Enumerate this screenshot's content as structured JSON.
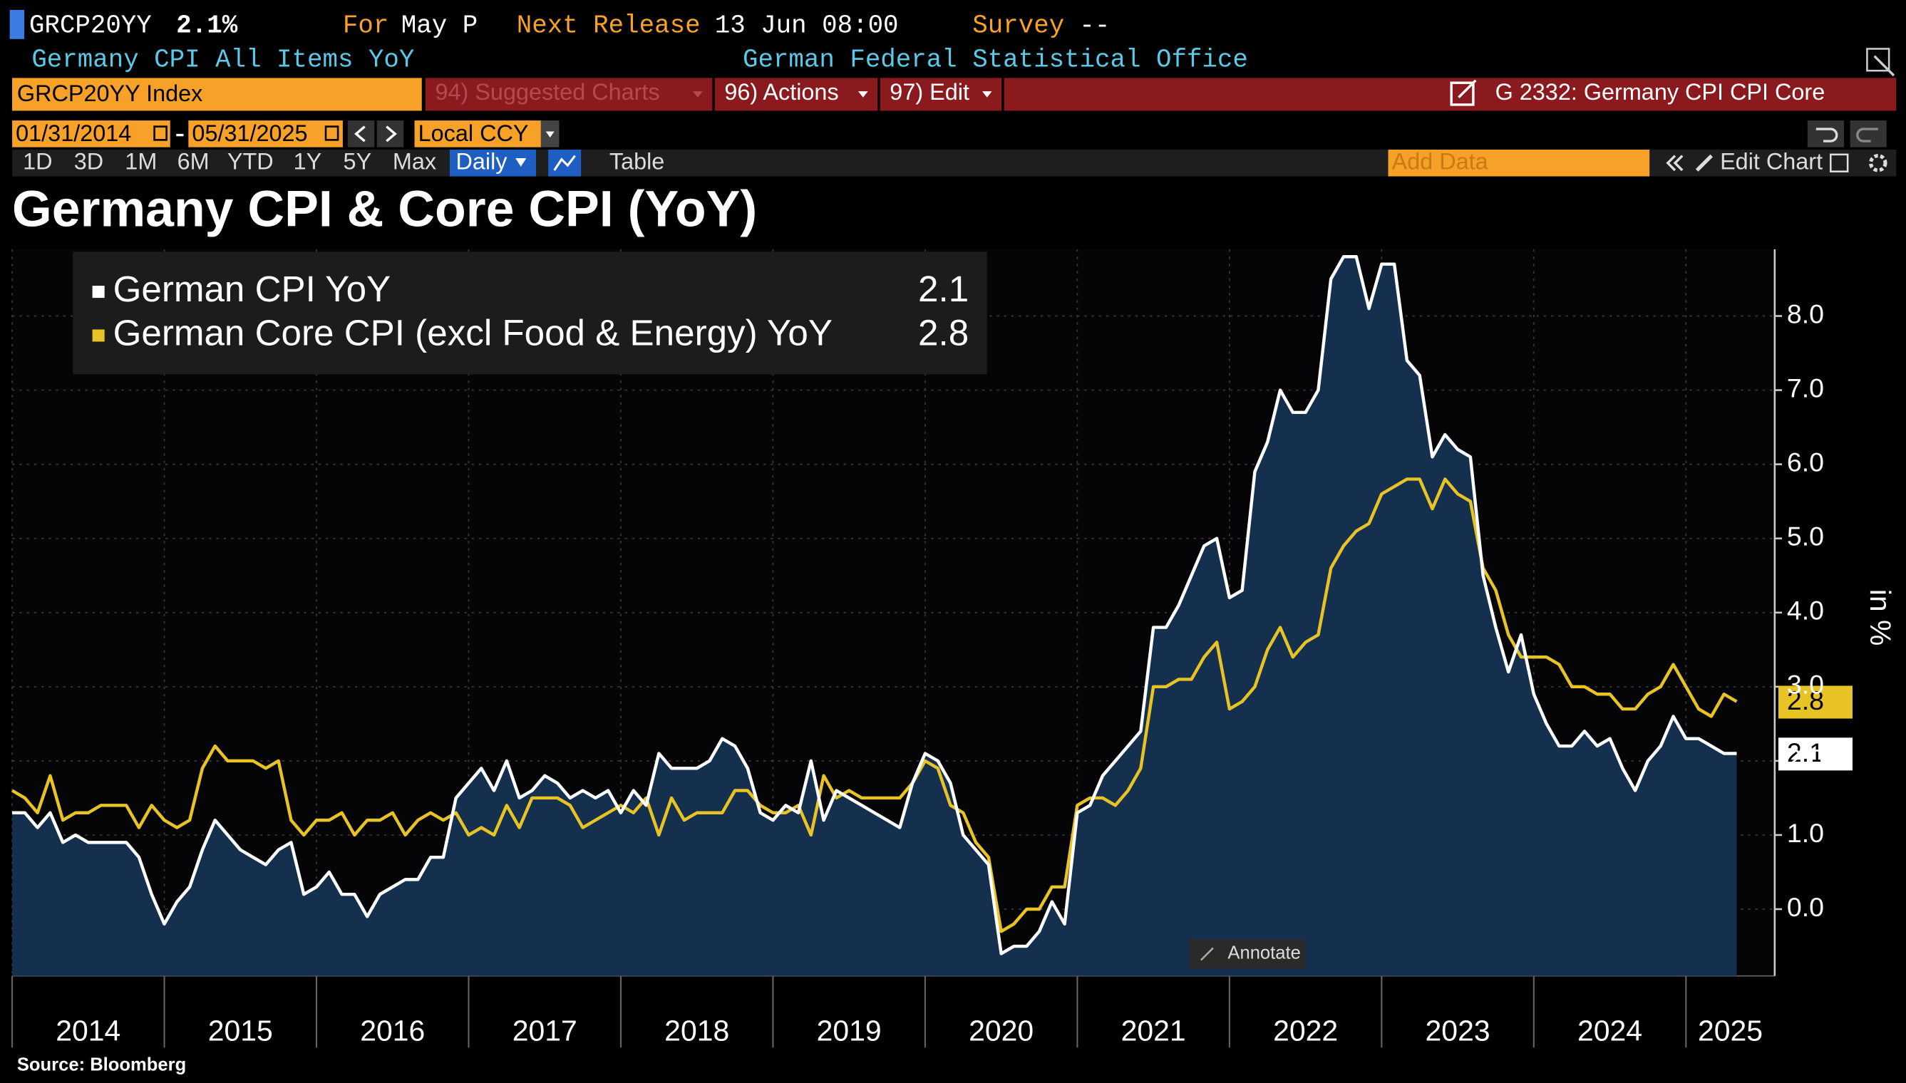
{
  "header": {
    "ticker": "GRCP20YY",
    "last": "2.1%",
    "for_label": "For",
    "period": "May P",
    "release_label": "Next Release",
    "release": "13 Jun 08:00",
    "survey_label": "Survey",
    "survey": "--",
    "description": "Germany CPI All Items YoY",
    "source": "German Federal Statistical Office"
  },
  "toolbar": {
    "security": "GRCP20YY Index",
    "menus": [
      "94) Suggested Charts",
      "96) Actions",
      "97) Edit"
    ],
    "chart_name": "G 2332: Germany CPI CPI Core"
  },
  "controls": {
    "start_date": "01/31/2014",
    "end_date": "05/31/2025",
    "currency": "Local CCY",
    "ranges": [
      "1D",
      "3D",
      "1M",
      "6M",
      "YTD",
      "1Y",
      "5Y",
      "Max"
    ],
    "frequency": "Daily",
    "table": "Table",
    "add_data": "Add Data",
    "edit": "Edit Chart",
    "annotate": "Annotate"
  },
  "footer": "Source: Bloomberg",
  "chart_data": {
    "type": "line",
    "title": "Germany CPI & Core CPI (YoY)",
    "y_label": "in %",
    "x": [
      "2014-01",
      "2014-02",
      "2014-03",
      "2014-04",
      "2014-05",
      "2014-06",
      "2014-07",
      "2014-08",
      "2014-09",
      "2014-10",
      "2014-11",
      "2014-12",
      "2015-01",
      "2015-02",
      "2015-03",
      "2015-04",
      "2015-05",
      "2015-06",
      "2015-07",
      "2015-08",
      "2015-09",
      "2015-10",
      "2015-11",
      "2015-12",
      "2016-01",
      "2016-02",
      "2016-03",
      "2016-04",
      "2016-05",
      "2016-06",
      "2016-07",
      "2016-08",
      "2016-09",
      "2016-10",
      "2016-11",
      "2016-12",
      "2017-01",
      "2017-02",
      "2017-03",
      "2017-04",
      "2017-05",
      "2017-06",
      "2017-07",
      "2017-08",
      "2017-09",
      "2017-10",
      "2017-11",
      "2017-12",
      "2018-01",
      "2018-02",
      "2018-03",
      "2018-04",
      "2018-05",
      "2018-06",
      "2018-07",
      "2018-08",
      "2018-09",
      "2018-10",
      "2018-11",
      "2018-12",
      "2019-01",
      "2019-02",
      "2019-03",
      "2019-04",
      "2019-05",
      "2019-06",
      "2019-07",
      "2019-08",
      "2019-09",
      "2019-10",
      "2019-11",
      "2019-12",
      "2020-01",
      "2020-02",
      "2020-03",
      "2020-04",
      "2020-05",
      "2020-06",
      "2020-07",
      "2020-08",
      "2020-09",
      "2020-10",
      "2020-11",
      "2020-12",
      "2021-01",
      "2021-02",
      "2021-03",
      "2021-04",
      "2021-05",
      "2021-06",
      "2021-07",
      "2021-08",
      "2021-09",
      "2021-10",
      "2021-11",
      "2021-12",
      "2022-01",
      "2022-02",
      "2022-03",
      "2022-04",
      "2022-05",
      "2022-06",
      "2022-07",
      "2022-08",
      "2022-09",
      "2022-10",
      "2022-11",
      "2022-12",
      "2023-01",
      "2023-02",
      "2023-03",
      "2023-04",
      "2023-05",
      "2023-06",
      "2023-07",
      "2023-08",
      "2023-09",
      "2023-10",
      "2023-11",
      "2023-12",
      "2024-01",
      "2024-02",
      "2024-03",
      "2024-04",
      "2024-05",
      "2024-06",
      "2024-07",
      "2024-08",
      "2024-09",
      "2024-10",
      "2024-11",
      "2024-12",
      "2025-01",
      "2025-02",
      "2025-03",
      "2025-04",
      "2025-05"
    ],
    "series": [
      {
        "name": "German CPI YoY",
        "color": "#ffffff",
        "fill": "#15304f",
        "values": [
          1.3,
          1.3,
          1.1,
          1.3,
          0.9,
          1.0,
          0.9,
          0.9,
          0.9,
          0.9,
          0.7,
          0.2,
          -0.2,
          0.1,
          0.3,
          0.8,
          1.2,
          1.0,
          0.8,
          0.7,
          0.6,
          0.8,
          0.9,
          0.2,
          0.3,
          0.5,
          0.2,
          0.2,
          -0.1,
          0.2,
          0.3,
          0.4,
          0.4,
          0.7,
          0.7,
          1.5,
          1.7,
          1.9,
          1.6,
          2.0,
          1.5,
          1.6,
          1.8,
          1.7,
          1.5,
          1.6,
          1.5,
          1.6,
          1.3,
          1.6,
          1.4,
          2.1,
          1.9,
          1.9,
          1.9,
          2.0,
          2.3,
          2.2,
          1.9,
          1.3,
          1.2,
          1.4,
          1.3,
          2.0,
          1.2,
          1.6,
          1.5,
          1.4,
          1.3,
          1.2,
          1.1,
          1.7,
          2.1,
          2.0,
          1.7,
          1.0,
          0.8,
          0.6,
          -0.6,
          -0.5,
          -0.5,
          -0.3,
          0.1,
          -0.2,
          1.3,
          1.4,
          1.8,
          2.0,
          2.2,
          2.4,
          3.8,
          3.8,
          4.1,
          4.5,
          4.9,
          5.0,
          4.2,
          4.3,
          5.9,
          6.3,
          7.0,
          6.7,
          6.7,
          7.0,
          8.5,
          8.8,
          8.8,
          8.1,
          8.7,
          8.7,
          7.4,
          7.2,
          6.1,
          6.4,
          6.2,
          6.1,
          4.5,
          3.8,
          3.2,
          3.7,
          2.9,
          2.5,
          2.2,
          2.2,
          2.4,
          2.2,
          2.3,
          1.9,
          1.6,
          2.0,
          2.2,
          2.6,
          2.3,
          2.3,
          2.2,
          2.1,
          2.1
        ]
      },
      {
        "name": "German Core CPI (excl Food & Energy) YoY",
        "color": "#e8c325",
        "values": [
          1.6,
          1.5,
          1.3,
          1.8,
          1.2,
          1.3,
          1.3,
          1.4,
          1.4,
          1.4,
          1.1,
          1.4,
          1.2,
          1.1,
          1.2,
          1.9,
          2.2,
          2.0,
          2.0,
          2.0,
          1.9,
          2.0,
          1.2,
          1.0,
          1.2,
          1.2,
          1.3,
          1.0,
          1.2,
          1.2,
          1.3,
          1.0,
          1.2,
          1.3,
          1.2,
          1.3,
          1.0,
          1.1,
          1.0,
          1.4,
          1.1,
          1.5,
          1.5,
          1.5,
          1.4,
          1.1,
          1.2,
          1.3,
          1.4,
          1.3,
          1.5,
          1.0,
          1.5,
          1.2,
          1.3,
          1.3,
          1.3,
          1.6,
          1.6,
          1.4,
          1.3,
          1.3,
          1.4,
          1.0,
          1.8,
          1.5,
          1.6,
          1.5,
          1.5,
          1.5,
          1.5,
          1.7,
          2.0,
          1.9,
          1.4,
          1.3,
          0.9,
          0.7,
          -0.3,
          -0.2,
          0.0,
          0.0,
          0.3,
          0.3,
          1.4,
          1.5,
          1.5,
          1.4,
          1.6,
          1.9,
          3.0,
          3.0,
          3.1,
          3.1,
          3.4,
          3.6,
          2.7,
          2.8,
          3.0,
          3.5,
          3.8,
          3.4,
          3.6,
          3.7,
          4.6,
          4.9,
          5.1,
          5.2,
          5.6,
          5.7,
          5.8,
          5.8,
          5.4,
          5.8,
          5.6,
          5.5,
          4.6,
          4.3,
          3.7,
          3.4,
          3.4,
          3.4,
          3.3,
          3.0,
          3.0,
          2.9,
          2.9,
          2.7,
          2.7,
          2.9,
          3.0,
          3.3,
          3.0,
          2.7,
          2.6,
          2.9,
          2.8
        ]
      }
    ],
    "xlim": [
      "2014-01",
      "2025-08"
    ],
    "xticks": [
      {
        "value": "2014-01",
        "label": "2014"
      },
      {
        "value": "2015-01",
        "label": "2015"
      },
      {
        "value": "2016-01",
        "label": "2016"
      },
      {
        "value": "2017-01",
        "label": "2017"
      },
      {
        "value": "2018-01",
        "label": "2018"
      },
      {
        "value": "2019-01",
        "label": "2019"
      },
      {
        "value": "2020-01",
        "label": "2020"
      },
      {
        "value": "2021-01",
        "label": "2021"
      },
      {
        "value": "2022-01",
        "label": "2022"
      },
      {
        "value": "2023-01",
        "label": "2023"
      },
      {
        "value": "2024-01",
        "label": "2024"
      },
      {
        "value": "2025-01",
        "label": "2025"
      }
    ],
    "ylim": [
      -0.9,
      8.9
    ],
    "yticks": [
      {
        "value": 0,
        "label": "0.0"
      },
      {
        "value": 1,
        "label": "1.0"
      },
      {
        "value": 2,
        "label": "2.0"
      },
      {
        "value": 3,
        "label": "3.0"
      },
      {
        "value": 4,
        "label": "4.0"
      },
      {
        "value": 5,
        "label": "5.0"
      },
      {
        "value": 6,
        "label": "6.0"
      },
      {
        "value": 7,
        "label": "7.0"
      },
      {
        "value": 8,
        "label": "8.0"
      }
    ],
    "grid": true,
    "legend": "top-left"
  }
}
